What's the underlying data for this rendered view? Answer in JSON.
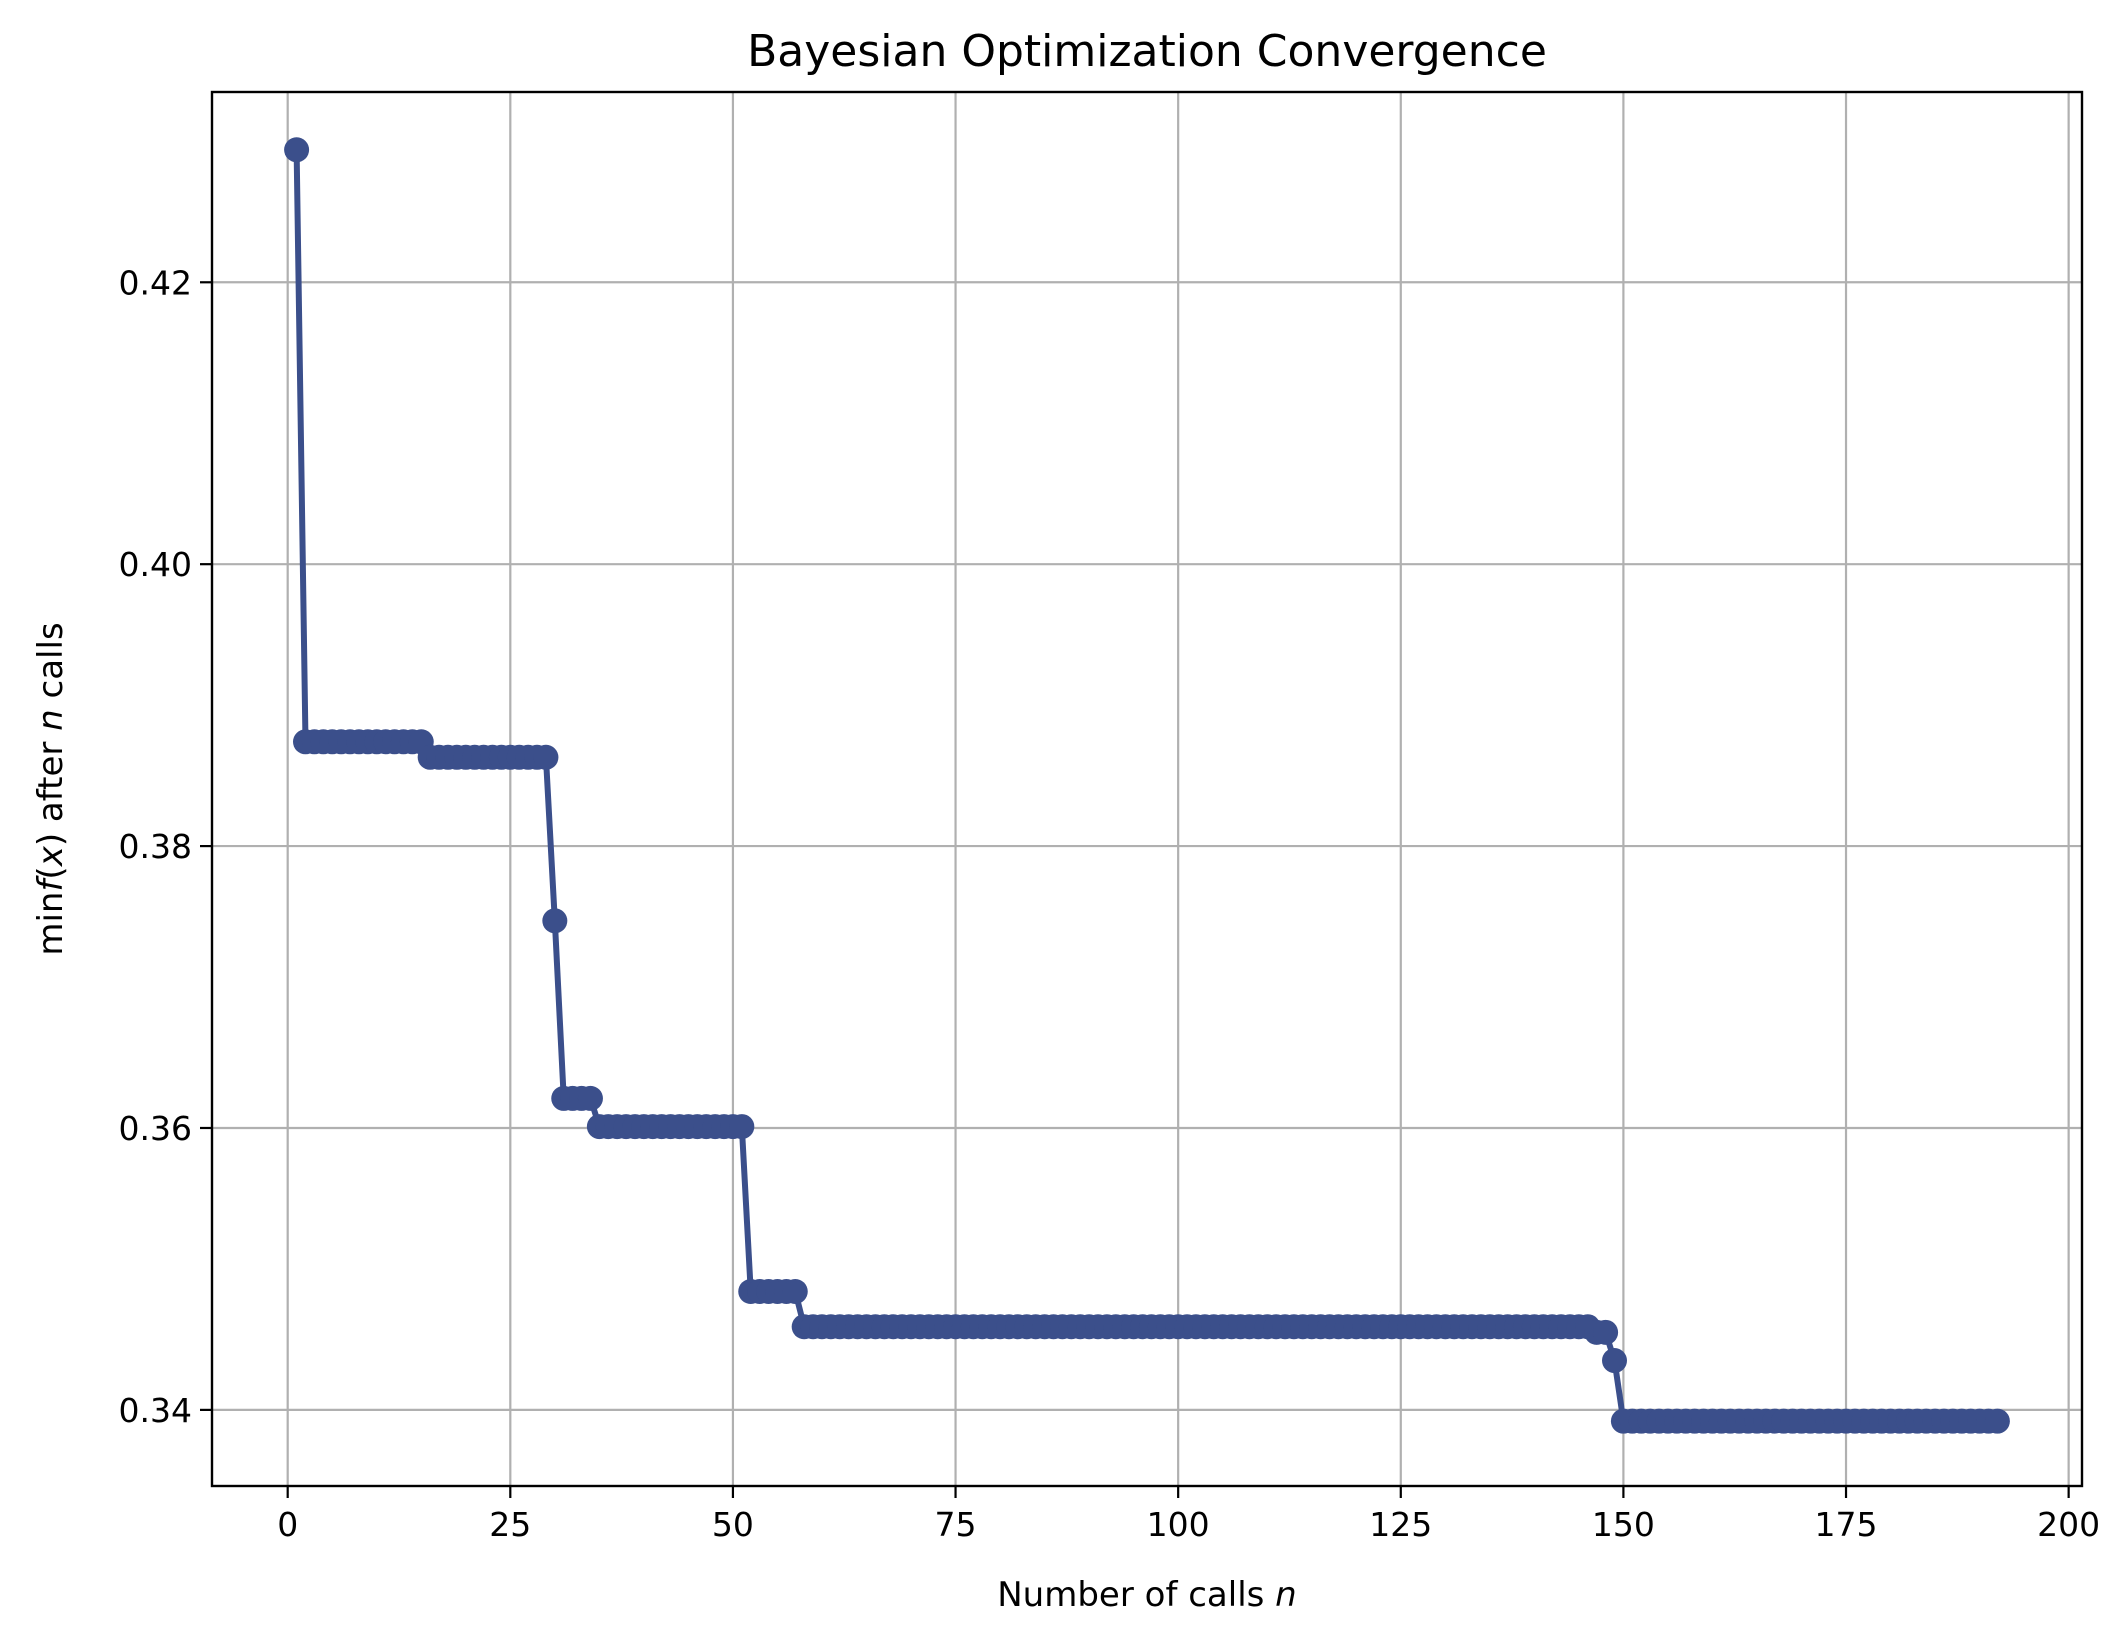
{
  "chart_data": {
    "type": "line",
    "title": "Bayesian Optimization Convergence",
    "xlabel": {
      "prefix": "Number of calls ",
      "math": "n"
    },
    "ylabel": {
      "p1": "min",
      "math1": "f",
      "p2": "(",
      "math2": "x",
      "p3": ") after ",
      "math3": "n",
      "p4": " calls"
    },
    "xlim": [
      -8.5,
      201.5
    ],
    "ylim": [
      0.3346,
      0.4335
    ],
    "xticks": [
      0,
      25,
      50,
      75,
      100,
      125,
      150,
      175,
      200
    ],
    "xtick_labels": [
      "0",
      "25",
      "50",
      "75",
      "100",
      "125",
      "150",
      "175",
      "200"
    ],
    "yticks": [
      0.34,
      0.36,
      0.38,
      0.4,
      0.42
    ],
    "ytick_labels": [
      "0.34",
      "0.36",
      "0.38",
      "0.40",
      "0.42"
    ],
    "grid": true,
    "color": "#3b4f8b",
    "n_calls": 192,
    "series": [
      {
        "segments": [
          {
            "from": 1,
            "to": 1,
            "y": 0.4294
          },
          {
            "from": 2,
            "to": 15,
            "y": 0.3874
          },
          {
            "from": 16,
            "to": 29,
            "y": 0.3863
          },
          {
            "from": 30,
            "to": 30,
            "y": 0.3747
          },
          {
            "from": 31,
            "to": 34,
            "y": 0.3621
          },
          {
            "from": 35,
            "to": 51,
            "y": 0.3601
          },
          {
            "from": 52,
            "to": 57,
            "y": 0.3484
          },
          {
            "from": 58,
            "to": 146,
            "y": 0.3459
          },
          {
            "from": 147,
            "to": 148,
            "y": 0.3455
          },
          {
            "from": 149,
            "to": 149,
            "y": 0.3435
          },
          {
            "from": 150,
            "to": 192,
            "y": 0.3392
          }
        ]
      }
    ]
  }
}
